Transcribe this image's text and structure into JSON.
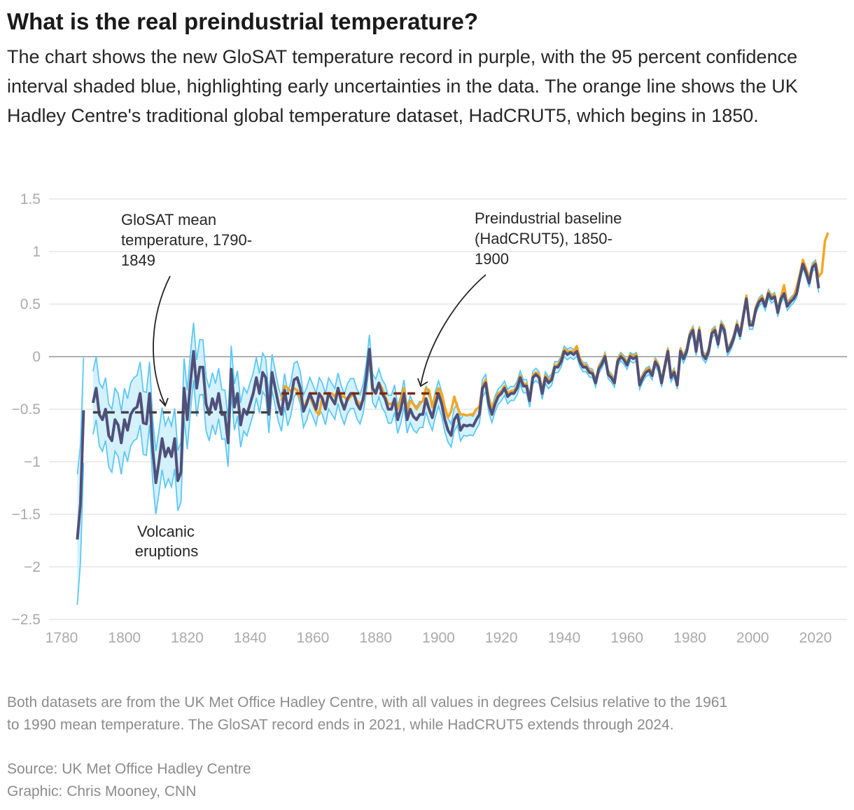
{
  "header": {
    "title": "What is the real preindustrial temperature?",
    "subtitle": "The chart shows the new GloSAT temperature record in purple, with the 95 percent confidence interval shaded blue, highlighting early uncertainties in the data. The orange line shows the UK Hadley Centre's traditional global temperature dataset, HadCRUT5, which begins in 1850."
  },
  "footer": {
    "note_line1": "Both datasets are from the UK Met Office Hadley Centre, with all values in degrees Celsius relative to the 1961",
    "note_line2": "to 1990 mean temperature. The GloSAT record ends in 2021, while HadCRUT5 extends through 2024.",
    "source": "Source: UK Met Office Hadley Centre",
    "credit": "Graphic: Chris Mooney, CNN"
  },
  "colors": {
    "glosat": "#50507a",
    "ci_fill": "#cdeefb",
    "ci_line": "#5bc8f5",
    "hadcrut": "#f5a623",
    "glosat_mean": "#444444",
    "baseline": "#7a2a0a",
    "grid": "#e6e6e6",
    "zero": "#b0b0b0"
  },
  "chart_data": {
    "type": "line",
    "xlim": [
      1780,
      2024
    ],
    "ylim": [
      -2.5,
      1.5
    ],
    "x_ticks": [
      1780,
      1800,
      1820,
      1840,
      1860,
      1880,
      1900,
      1920,
      1940,
      1960,
      1980,
      2000,
      2020
    ],
    "x_tick_labels": [
      "1780",
      "1800",
      "1820",
      "1840",
      "1860",
      "1880",
      "1900",
      "1920",
      "1940",
      "1960",
      "1980",
      "2000",
      "2020"
    ],
    "y_ticks": [
      1.5,
      1,
      0.5,
      0,
      -0.5,
      -1,
      -1.5,
      -2,
      -2.5
    ],
    "y_tick_labels": [
      "1.5",
      "1",
      "0.5",
      "0",
      "−0.5",
      "−1",
      "−1.5",
      "−2",
      "−2.5"
    ],
    "grid": true,
    "annotations": {
      "glosat_mean": [
        "GloSAT mean",
        "temperature, 1790-",
        "1849"
      ],
      "baseline": [
        "Preindustrial baseline",
        "(HadCRUT5), 1850-",
        "1900"
      ],
      "volcanic": [
        "Volcanic",
        "eruptions"
      ]
    },
    "reference_lines": [
      {
        "name": "GloSAT mean temperature, 1790-1849",
        "from": 1790,
        "to": 1849,
        "value": -0.53
      },
      {
        "name": "Preindustrial baseline (HadCRUT5), 1850-1900",
        "from": 1850,
        "to": 1900,
        "value": -0.35
      }
    ],
    "glosat": {
      "name": "GloSAT",
      "start_year": 1785,
      "values": [
        -1.74,
        -1.4,
        -0.51,
        null,
        null,
        -0.44,
        -0.3,
        -0.55,
        -0.6,
        -0.5,
        -0.75,
        -0.8,
        -0.6,
        -0.65,
        -0.82,
        -0.6,
        -0.7,
        -0.55,
        -0.5,
        -0.48,
        -0.35,
        -0.63,
        -0.64,
        -0.35,
        -0.88,
        -1.2,
        -1.0,
        -0.78,
        -0.95,
        -0.87,
        -0.95,
        -0.78,
        -1.18,
        -1.1,
        -0.3,
        -0.6,
        -0.25,
        0.05,
        -0.3,
        -0.1,
        -0.1,
        -0.45,
        -0.55,
        -0.4,
        -0.5,
        -0.35,
        -0.55,
        -0.55,
        -0.82,
        -0.12,
        -0.48,
        -0.35,
        -0.65,
        -0.5,
        -0.55,
        -0.45,
        -0.35,
        -0.2,
        -0.35,
        -0.15,
        -0.2,
        -0.55,
        -0.15,
        -0.3,
        -0.45,
        -0.55,
        -0.32,
        -0.5,
        -0.4,
        -0.22,
        -0.2,
        -0.3,
        -0.52,
        -0.45,
        -0.35,
        -0.42,
        -0.5,
        -0.35,
        -0.4,
        -0.5,
        -0.35,
        -0.4,
        -0.45,
        -0.3,
        -0.42,
        -0.5,
        -0.4,
        -0.35,
        -0.35,
        -0.45,
        -0.5,
        -0.4,
        -0.2,
        0.07,
        -0.3,
        -0.35,
        -0.25,
        -0.35,
        -0.4,
        -0.5,
        -0.5,
        -0.4,
        -0.6,
        -0.5,
        -0.35,
        -0.6,
        -0.5,
        -0.57,
        -0.6,
        -0.55,
        -0.55,
        -0.4,
        -0.5,
        -0.58,
        -0.45,
        -0.35,
        -0.45,
        -0.6,
        -0.7,
        -0.75,
        -0.6,
        -0.55,
        -0.7,
        -0.65,
        -0.66,
        -0.65,
        -0.66,
        -0.6,
        -0.55,
        -0.3,
        -0.25,
        -0.45,
        -0.55,
        -0.45,
        -0.38,
        -0.35,
        -0.3,
        -0.38,
        -0.35,
        -0.35,
        -0.3,
        -0.2,
        -0.28,
        -0.28,
        -0.42,
        -0.2,
        -0.17,
        -0.2,
        -0.35,
        -0.2,
        -0.25,
        -0.22,
        -0.1,
        -0.1,
        -0.05,
        0.05,
        0.02,
        0.04,
        0.02,
        0.05,
        -0.05,
        -0.1,
        -0.1,
        -0.15,
        -0.16,
        -0.25,
        -0.12,
        -0.07,
        0.0,
        -0.17,
        -0.2,
        -0.25,
        -0.05,
        0.0,
        -0.03,
        -0.08,
        0.0,
        -0.02,
        0.0,
        -0.27,
        -0.2,
        -0.15,
        -0.13,
        -0.18,
        -0.05,
        -0.1,
        -0.25,
        -0.1,
        0.05,
        -0.2,
        -0.15,
        -0.27,
        0.05,
        -0.02,
        0.05,
        0.2,
        0.25,
        0.05,
        0.25,
        0.02,
        -0.02,
        0.05,
        0.22,
        0.25,
        0.12,
        0.3,
        0.25,
        0.05,
        0.1,
        0.18,
        0.3,
        0.2,
        0.38,
        0.55,
        0.3,
        0.3,
        0.45,
        0.52,
        0.55,
        0.48,
        0.6,
        0.55,
        0.57,
        0.42,
        0.55,
        0.6,
        0.48,
        0.52,
        0.55,
        0.6,
        0.75,
        0.88,
        0.8,
        0.7,
        0.85,
        0.88,
        0.65
      ]
    },
    "glosat_ci_halfwidth": {
      "years": [
        1785,
        1787,
        1790,
        1810,
        1820,
        1850,
        1900,
        1920,
        1950,
        2021
      ],
      "values": [
        0.62,
        0.5,
        0.3,
        0.3,
        0.28,
        0.16,
        0.12,
        0.07,
        0.04,
        0.04
      ]
    },
    "hadcrut5": {
      "name": "HadCRUT5",
      "start_year": 1850,
      "values": [
        -0.42,
        -0.28,
        -0.3,
        -0.33,
        -0.3,
        -0.32,
        -0.4,
        -0.5,
        -0.42,
        -0.38,
        -0.45,
        -0.52,
        -0.55,
        -0.38,
        -0.5,
        -0.35,
        -0.35,
        -0.38,
        -0.32,
        -0.38,
        -0.38,
        -0.42,
        -0.38,
        -0.36,
        -0.42,
        -0.45,
        -0.42,
        -0.2,
        -0.0,
        -0.32,
        -0.32,
        -0.25,
        -0.3,
        -0.38,
        -0.45,
        -0.45,
        -0.42,
        -0.5,
        -0.4,
        -0.3,
        -0.52,
        -0.42,
        -0.45,
        -0.5,
        -0.45,
        -0.42,
        -0.3,
        -0.32,
        -0.48,
        -0.38,
        -0.3,
        -0.35,
        -0.48,
        -0.58,
        -0.52,
        -0.38,
        -0.48,
        -0.55,
        -0.55,
        -0.56,
        -0.55,
        -0.55,
        -0.5,
        -0.48,
        -0.28,
        -0.22,
        -0.4,
        -0.5,
        -0.42,
        -0.35,
        -0.33,
        -0.28,
        -0.35,
        -0.33,
        -0.32,
        -0.28,
        -0.18,
        -0.26,
        -0.26,
        -0.4,
        -0.18,
        -0.15,
        -0.17,
        -0.32,
        -0.18,
        -0.22,
        -0.2,
        -0.08,
        -0.08,
        -0.02,
        0.07,
        0.05,
        0.05,
        0.05,
        0.1,
        -0.02,
        -0.08,
        -0.08,
        -0.13,
        -0.14,
        -0.23,
        -0.1,
        -0.05,
        0.02,
        -0.15,
        -0.18,
        -0.23,
        -0.03,
        0.02,
        -0.01,
        -0.06,
        0.02,
        0.0,
        0.02,
        -0.25,
        -0.18,
        -0.13,
        -0.11,
        -0.16,
        -0.03,
        -0.08,
        -0.23,
        -0.08,
        0.07,
        -0.18,
        -0.13,
        -0.25,
        0.07,
        0.0,
        0.07,
        0.22,
        0.27,
        0.07,
        0.27,
        0.04,
        0.0,
        0.07,
        0.24,
        0.27,
        0.14,
        0.32,
        0.27,
        0.07,
        0.12,
        0.2,
        0.32,
        0.22,
        0.4,
        0.58,
        0.32,
        0.32,
        0.47,
        0.54,
        0.57,
        0.5,
        0.62,
        0.57,
        0.59,
        0.44,
        0.57,
        0.68,
        0.5,
        0.54,
        0.57,
        0.66,
        0.78,
        0.92,
        0.84,
        0.75,
        0.86,
        0.9,
        0.76,
        0.8,
        1.1,
        1.18
      ]
    }
  }
}
